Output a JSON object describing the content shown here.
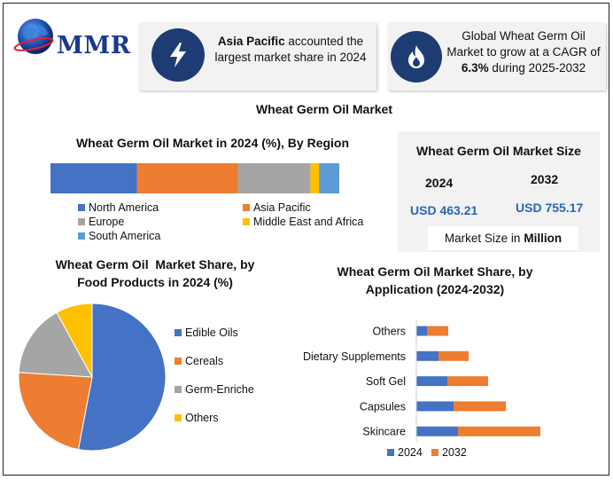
{
  "header": {
    "logo_text": "MMR",
    "card1": {
      "bold": "Asia Pacific",
      "rest_line1": " accounted the",
      "line2": "largest market share in 2024"
    },
    "card2": {
      "line1": "Global Wheat Germ Oil",
      "line2": "Market to grow at a CAGR of",
      "bold": "6.3%",
      "line3_rest": " during 2025-2032"
    },
    "icons": [
      "globe-icon",
      "lightning-icon",
      "flame-icon"
    ]
  },
  "main_title": "Wheat Germ Oil Market",
  "region_chart": {
    "title": "Wheat Germ Oil Market in 2024 (%), By Region",
    "chart_data": {
      "type": "bar",
      "orientation": "horizontal-stacked-100",
      "categories": [
        "North America",
        "Asia Pacific",
        "Europe",
        "Middle East and Africa",
        "South America"
      ],
      "values": [
        30,
        35,
        25,
        3,
        7
      ],
      "colors": [
        "#4472c4",
        "#ed7d31",
        "#a5a5a5",
        "#ffc000",
        "#5b9bd5"
      ]
    },
    "legend": [
      "North America",
      "Asia Pacific",
      "Europe",
      "Middle East and Africa",
      "South America"
    ]
  },
  "market_size": {
    "title": "Wheat Germ Oil Market Size",
    "year1": "2024",
    "year2": "2032",
    "value1": "USD 463.21",
    "value2": "USD 755.17",
    "unit_prefix": "Market Size in",
    "unit_bold": "Million"
  },
  "pie_chart": {
    "title_line1": "Wheat Germ Oil  Market Share, by",
    "title_line2": "Food Products in 2024 (%)",
    "chart_data": {
      "type": "pie",
      "categories": [
        "Edible Oils",
        "Cereals",
        "Germ-Enriched Foods",
        "Others"
      ],
      "values": [
        53,
        23,
        16,
        8
      ],
      "colors": [
        "#4472c4",
        "#ed7d31",
        "#a5a5a5",
        "#ffc000"
      ]
    },
    "legend": [
      "Edible Oils",
      "Cereals",
      "Germ-Enriche",
      "Others"
    ]
  },
  "app_chart": {
    "title_line1": "Wheat Germ Oil Market Share, by",
    "title_line2": "Application (2024-2032)",
    "chart_data": {
      "type": "bar",
      "orientation": "horizontal-stacked",
      "categories": [
        "Others",
        "Dietary Supplements",
        "Soft Gel",
        "Capsules",
        "Skincare"
      ],
      "series": [
        {
          "name": "2024",
          "values": [
            12,
            25,
            35,
            42,
            47
          ],
          "color": "#4472c4"
        },
        {
          "name": "2032",
          "values": [
            24,
            34,
            46,
            59,
            93
          ],
          "color": "#ed7d31"
        }
      ]
    },
    "legend": [
      "2024",
      "2032"
    ]
  }
}
